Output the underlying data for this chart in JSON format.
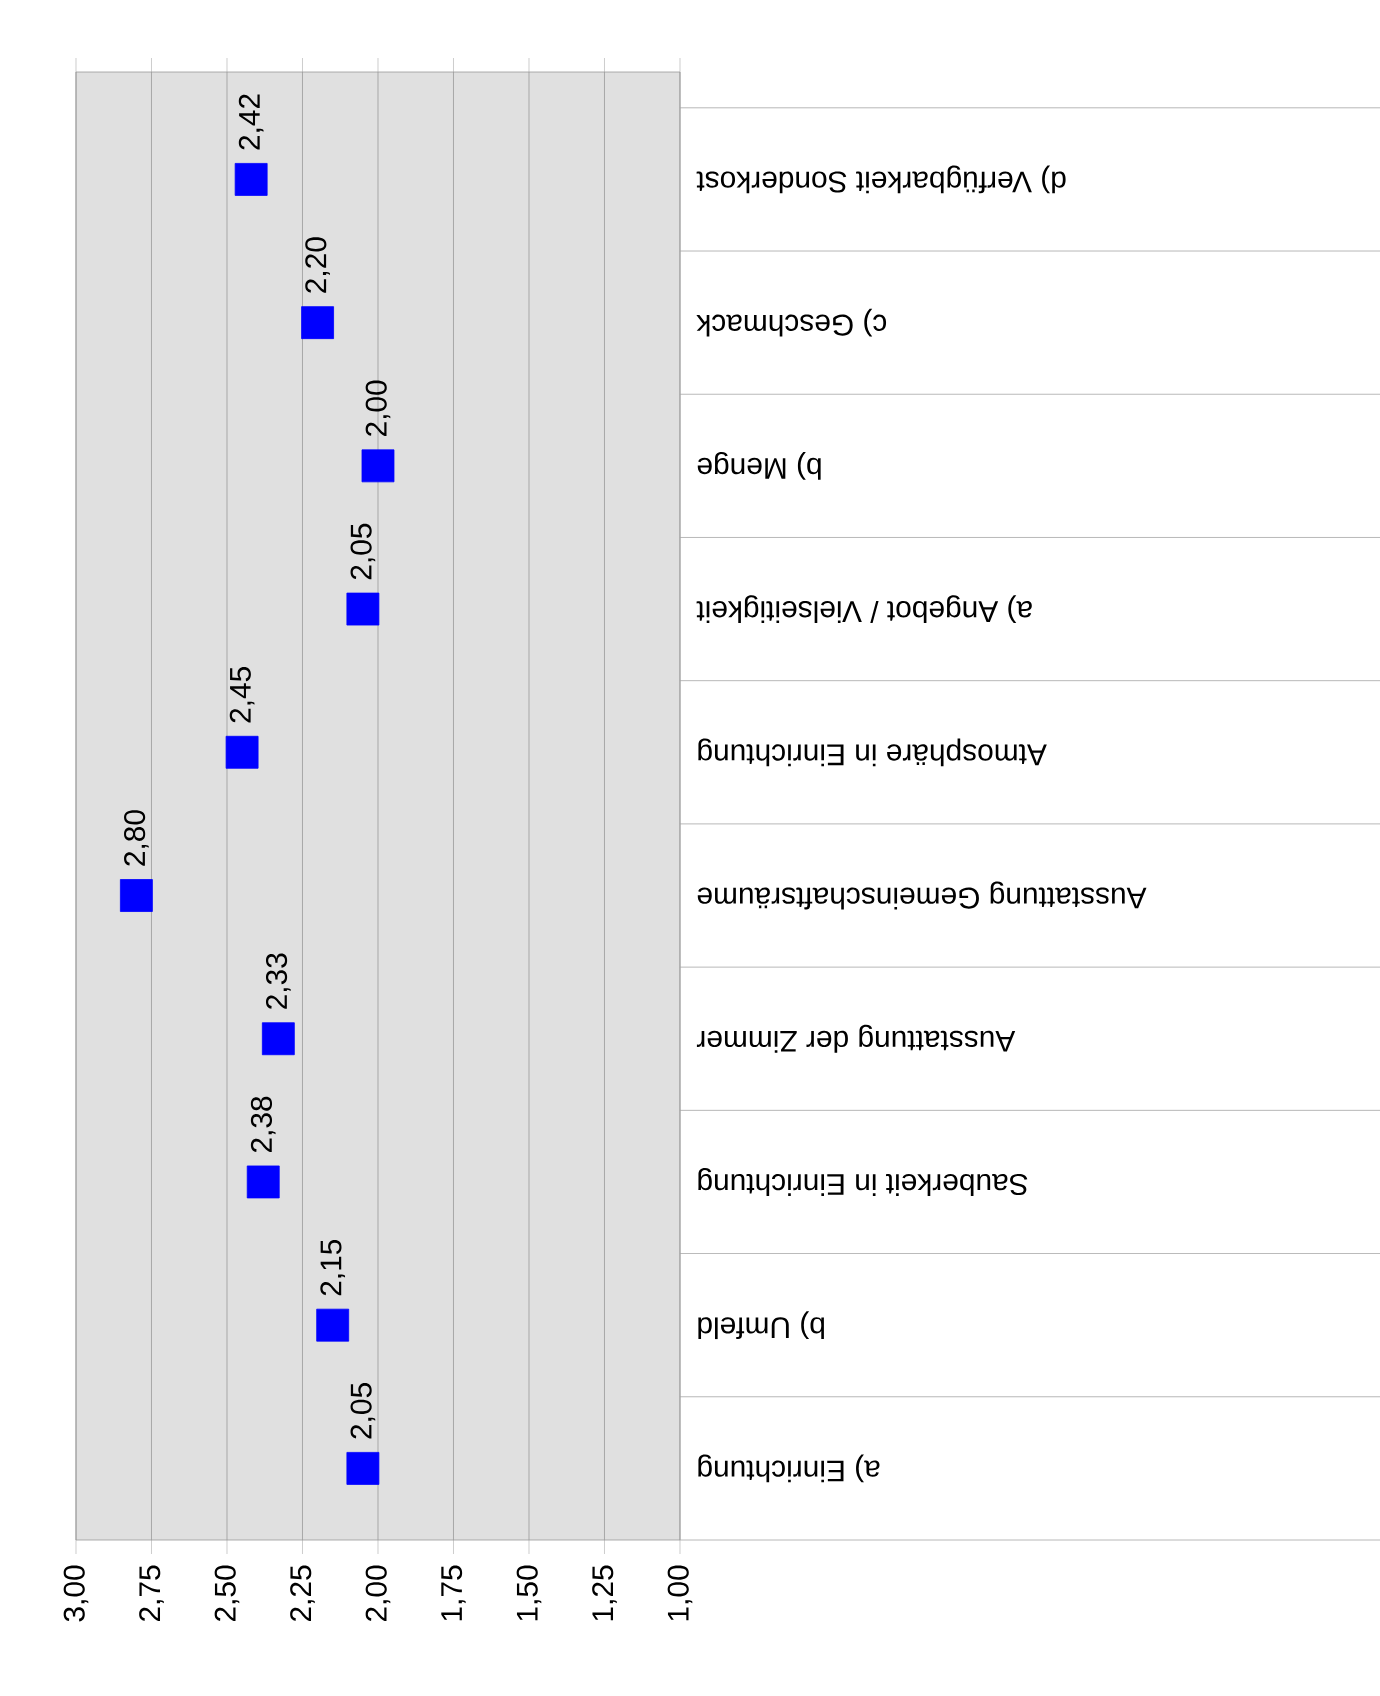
{
  "chart_data": {
    "type": "scatter",
    "orientation": "horizontal",
    "marker": "square",
    "grid": "x",
    "categories": [
      "d) Verfügbarkeit Sonderkost",
      "c) Geschmack",
      "b) Menge",
      "a) Angebot / Vielseitigkeit",
      "Atmosphäre in Einrichtung",
      "Ausstattung Gemeinschaftsräume",
      "Ausstattung der Zimmer",
      "Sauberkeit in Einrichtung",
      "b) Umfeld",
      "a) Einrichtung"
    ],
    "values": [
      2.42,
      2.2,
      2.0,
      2.05,
      2.45,
      2.8,
      2.33,
      2.38,
      2.15,
      2.05
    ],
    "value_labels": [
      "2,42",
      "2,20",
      "2,00",
      "2,05",
      "2,45",
      "2,80",
      "2,33",
      "2,38",
      "2,15",
      "2,05"
    ],
    "color": "#0000ff",
    "xlim": [
      3,
      1
    ],
    "xticks": [
      {
        "value": 3,
        "label": "3,00"
      },
      {
        "value": 2.75,
        "label": "2,75"
      },
      {
        "value": 2.5,
        "label": "2,50"
      },
      {
        "value": 2.25,
        "label": "2,25"
      },
      {
        "value": 2,
        "label": "2,00"
      },
      {
        "value": 1.75,
        "label": "1,75"
      },
      {
        "value": 1.5,
        "label": "1,50"
      },
      {
        "value": 1.25,
        "label": "1,25"
      },
      {
        "value": 1,
        "label": "1,00"
      }
    ]
  }
}
